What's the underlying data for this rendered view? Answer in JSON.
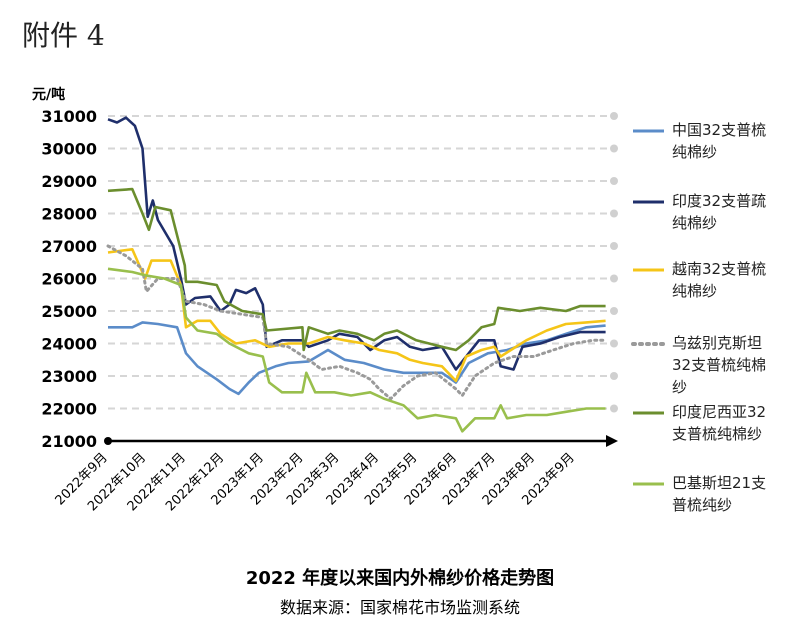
{
  "header": {
    "attachment": "附件 4"
  },
  "chart_data": {
    "type": "line",
    "title": "2022 年度以来国内外棉纱价格走势图",
    "source": "数据来源：国家棉花市场监测系统",
    "ylabel": "元/吨",
    "ylim": [
      21000,
      31000
    ],
    "yticks": [
      21000,
      22000,
      23000,
      24000,
      25000,
      26000,
      27000,
      28000,
      29000,
      30000,
      31000
    ],
    "grid": true,
    "legend_position": "right",
    "xlim": [
      "2022-09-01",
      "2023-09-30"
    ],
    "xticks": [
      {
        "date": "2022-09-01",
        "label": "2022年9月"
      },
      {
        "date": "2022-10-01",
        "label": "2022年10月"
      },
      {
        "date": "2022-11-01",
        "label": "2022年11月"
      },
      {
        "date": "2022-12-01",
        "label": "2022年12月"
      },
      {
        "date": "2023-01-01",
        "label": "2023年1月"
      },
      {
        "date": "2023-02-01",
        "label": "2023年2月"
      },
      {
        "date": "2023-03-01",
        "label": "2023年3月"
      },
      {
        "date": "2023-04-01",
        "label": "2023年4月"
      },
      {
        "date": "2023-05-01",
        "label": "2023年5月"
      },
      {
        "date": "2023-06-01",
        "label": "2023年6月"
      },
      {
        "date": "2023-07-01",
        "label": "2023年7月"
      },
      {
        "date": "2023-08-01",
        "label": "2023年8月"
      },
      {
        "date": "2023-09-01",
        "label": "2023年9月"
      }
    ],
    "series": [
      {
        "name": "中国32支普梳纯棉纱",
        "color": "#5b8cc9",
        "style": "solid",
        "points": [
          [
            "2022-09-01",
            24500
          ],
          [
            "2022-09-20",
            24500
          ],
          [
            "2022-09-28",
            24650
          ],
          [
            "2022-10-10",
            24600
          ],
          [
            "2022-10-25",
            24500
          ],
          [
            "2022-11-01",
            23700
          ],
          [
            "2022-11-10",
            23300
          ],
          [
            "2022-11-25",
            22900
          ],
          [
            "2022-12-05",
            22600
          ],
          [
            "2022-12-12",
            22450
          ],
          [
            "2022-12-20",
            22800
          ],
          [
            "2022-12-28",
            23100
          ],
          [
            "2023-01-10",
            23300
          ],
          [
            "2023-01-20",
            23400
          ],
          [
            "2023-02-05",
            23450
          ],
          [
            "2023-02-20",
            23800
          ],
          [
            "2023-03-05",
            23500
          ],
          [
            "2023-03-20",
            23400
          ],
          [
            "2023-04-05",
            23200
          ],
          [
            "2023-04-20",
            23100
          ],
          [
            "2023-05-05",
            23100
          ],
          [
            "2023-05-20",
            23100
          ],
          [
            "2023-05-31",
            22800
          ],
          [
            "2023-06-10",
            23400
          ],
          [
            "2023-06-25",
            23700
          ],
          [
            "2023-07-10",
            23800
          ],
          [
            "2023-07-25",
            24000
          ],
          [
            "2023-08-10",
            24100
          ],
          [
            "2023-08-25",
            24300
          ],
          [
            "2023-09-10",
            24500
          ],
          [
            "2023-09-25",
            24550
          ]
        ]
      },
      {
        "name": "印度32支普疏纯棉纱",
        "color": "#1f2f6b",
        "style": "solid",
        "points": [
          [
            "2022-09-01",
            30900
          ],
          [
            "2022-09-08",
            30800
          ],
          [
            "2022-09-15",
            30950
          ],
          [
            "2022-09-22",
            30700
          ],
          [
            "2022-09-28",
            30000
          ],
          [
            "2022-10-02",
            27900
          ],
          [
            "2022-10-06",
            28400
          ],
          [
            "2022-10-10",
            27800
          ],
          [
            "2022-10-22",
            27000
          ],
          [
            "2022-10-28",
            26000
          ],
          [
            "2022-11-01",
            25200
          ],
          [
            "2022-11-08",
            25400
          ],
          [
            "2022-11-20",
            25450
          ],
          [
            "2022-11-28",
            25000
          ],
          [
            "2022-12-05",
            25200
          ],
          [
            "2022-12-10",
            25650
          ],
          [
            "2022-12-18",
            25550
          ],
          [
            "2022-12-25",
            25700
          ],
          [
            "2022-12-31",
            25200
          ],
          [
            "2023-01-03",
            23900
          ],
          [
            "2023-01-15",
            24100
          ],
          [
            "2023-01-31",
            24100
          ],
          [
            "2023-02-05",
            23900
          ],
          [
            "2023-02-20",
            24100
          ],
          [
            "2023-03-01",
            24300
          ],
          [
            "2023-03-15",
            24200
          ],
          [
            "2023-03-25",
            23800
          ],
          [
            "2023-04-05",
            24100
          ],
          [
            "2023-04-15",
            24200
          ],
          [
            "2023-04-25",
            23900
          ],
          [
            "2023-05-05",
            23800
          ],
          [
            "2023-05-20",
            23900
          ],
          [
            "2023-05-31",
            23200
          ],
          [
            "2023-06-10",
            23700
          ],
          [
            "2023-06-18",
            24100
          ],
          [
            "2023-06-30",
            24100
          ],
          [
            "2023-07-05",
            23300
          ],
          [
            "2023-07-15",
            23200
          ],
          [
            "2023-07-22",
            23900
          ],
          [
            "2023-08-05",
            24000
          ],
          [
            "2023-08-20",
            24200
          ],
          [
            "2023-09-05",
            24350
          ],
          [
            "2023-09-25",
            24350
          ]
        ]
      },
      {
        "name": "越南32支普梳纯棉纱",
        "color": "#f5c518",
        "style": "solid",
        "points": [
          [
            "2022-09-01",
            26800
          ],
          [
            "2022-09-20",
            26900
          ],
          [
            "2022-09-30",
            26000
          ],
          [
            "2022-10-05",
            26550
          ],
          [
            "2022-10-20",
            26550
          ],
          [
            "2022-10-28",
            25800
          ],
          [
            "2022-11-01",
            24500
          ],
          [
            "2022-11-10",
            24700
          ],
          [
            "2022-11-20",
            24700
          ],
          [
            "2022-11-28",
            24300
          ],
          [
            "2022-12-10",
            24000
          ],
          [
            "2022-12-25",
            24100
          ],
          [
            "2023-01-05",
            23900
          ],
          [
            "2023-01-20",
            24000
          ],
          [
            "2023-02-05",
            24000
          ],
          [
            "2023-02-20",
            24200
          ],
          [
            "2023-03-05",
            24100
          ],
          [
            "2023-03-20",
            24000
          ],
          [
            "2023-04-01",
            23800
          ],
          [
            "2023-04-15",
            23700
          ],
          [
            "2023-04-25",
            23500
          ],
          [
            "2023-05-05",
            23400
          ],
          [
            "2023-05-20",
            23300
          ],
          [
            "2023-05-31",
            22850
          ],
          [
            "2023-06-08",
            23600
          ],
          [
            "2023-06-20",
            23800
          ],
          [
            "2023-06-30",
            23900
          ],
          [
            "2023-07-05",
            23600
          ],
          [
            "2023-07-15",
            23850
          ],
          [
            "2023-07-25",
            24100
          ],
          [
            "2023-08-10",
            24400
          ],
          [
            "2023-08-25",
            24600
          ],
          [
            "2023-09-10",
            24650
          ],
          [
            "2023-09-25",
            24700
          ]
        ]
      },
      {
        "name": "乌兹别克斯坦32支普梳纯棉纱",
        "color": "#9a9a9a",
        "style": "dotted",
        "points": [
          [
            "2022-09-01",
            27000
          ],
          [
            "2022-09-15",
            26700
          ],
          [
            "2022-09-28",
            26300
          ],
          [
            "2022-10-01",
            25600
          ],
          [
            "2022-10-10",
            26000
          ],
          [
            "2022-10-25",
            26000
          ],
          [
            "2022-11-01",
            25300
          ],
          [
            "2022-11-15",
            25200
          ],
          [
            "2022-11-28",
            25000
          ],
          [
            "2022-12-15",
            24900
          ],
          [
            "2022-12-31",
            24800
          ],
          [
            "2023-01-03",
            24000
          ],
          [
            "2023-01-20",
            23900
          ],
          [
            "2023-02-05",
            23500
          ],
          [
            "2023-02-15",
            23200
          ],
          [
            "2023-03-01",
            23300
          ],
          [
            "2023-03-15",
            23100
          ],
          [
            "2023-03-25",
            22900
          ],
          [
            "2023-04-01",
            22600
          ],
          [
            "2023-04-10",
            22300
          ],
          [
            "2023-04-20",
            22700
          ],
          [
            "2023-05-01",
            23000
          ],
          [
            "2023-05-15",
            23100
          ],
          [
            "2023-05-31",
            22600
          ],
          [
            "2023-06-05",
            22400
          ],
          [
            "2023-06-15",
            23000
          ],
          [
            "2023-06-30",
            23400
          ],
          [
            "2023-07-15",
            23600
          ],
          [
            "2023-07-31",
            23600
          ],
          [
            "2023-08-15",
            23800
          ],
          [
            "2023-08-31",
            24000
          ],
          [
            "2023-09-15",
            24100
          ],
          [
            "2023-09-25",
            24100
          ]
        ]
      },
      {
        "name": "印度尼西亚32支普梳纯棉纱",
        "color": "#6b8e2e",
        "style": "solid",
        "points": [
          [
            "2022-09-01",
            28700
          ],
          [
            "2022-09-20",
            28750
          ],
          [
            "2022-09-28",
            28000
          ],
          [
            "2022-10-03",
            27500
          ],
          [
            "2022-10-08",
            28200
          ],
          [
            "2022-10-20",
            28100
          ],
          [
            "2022-10-31",
            26400
          ],
          [
            "2022-11-01",
            25900
          ],
          [
            "2022-11-10",
            25900
          ],
          [
            "2022-11-25",
            25800
          ],
          [
            "2022-12-01",
            25300
          ],
          [
            "2022-12-15",
            25000
          ],
          [
            "2022-12-31",
            24900
          ],
          [
            "2023-01-03",
            24400
          ],
          [
            "2023-01-31",
            24500
          ],
          [
            "2023-02-01",
            23800
          ],
          [
            "2023-02-05",
            24500
          ],
          [
            "2023-02-20",
            24300
          ],
          [
            "2023-03-01",
            24400
          ],
          [
            "2023-03-15",
            24300
          ],
          [
            "2023-03-28",
            24100
          ],
          [
            "2023-04-05",
            24300
          ],
          [
            "2023-04-15",
            24400
          ],
          [
            "2023-04-30",
            24100
          ],
          [
            "2023-05-10",
            24000
          ],
          [
            "2023-05-20",
            23900
          ],
          [
            "2023-05-31",
            23800
          ],
          [
            "2023-06-10",
            24100
          ],
          [
            "2023-06-20",
            24500
          ],
          [
            "2023-06-30",
            24600
          ],
          [
            "2023-07-03",
            25100
          ],
          [
            "2023-07-20",
            25000
          ],
          [
            "2023-08-05",
            25100
          ],
          [
            "2023-08-25",
            25000
          ],
          [
            "2023-09-05",
            25150
          ],
          [
            "2023-09-25",
            25150
          ]
        ]
      },
      {
        "name": "巴基斯坦21支普梳纯纱",
        "color": "#99bf4d",
        "style": "solid",
        "points": [
          [
            "2022-09-01",
            26300
          ],
          [
            "2022-09-20",
            26200
          ],
          [
            "2022-09-30",
            26100
          ],
          [
            "2022-10-15",
            26000
          ],
          [
            "2022-10-28",
            25800
          ],
          [
            "2022-11-01",
            24800
          ],
          [
            "2022-11-10",
            24400
          ],
          [
            "2022-11-25",
            24300
          ],
          [
            "2022-12-05",
            24000
          ],
          [
            "2022-12-20",
            23700
          ],
          [
            "2022-12-31",
            23600
          ],
          [
            "2023-01-05",
            22800
          ],
          [
            "2023-01-15",
            22500
          ],
          [
            "2023-01-31",
            22500
          ],
          [
            "2023-02-03",
            23100
          ],
          [
            "2023-02-10",
            22500
          ],
          [
            "2023-02-25",
            22500
          ],
          [
            "2023-03-10",
            22400
          ],
          [
            "2023-03-25",
            22500
          ],
          [
            "2023-04-05",
            22300
          ],
          [
            "2023-04-20",
            22100
          ],
          [
            "2023-05-01",
            21700
          ],
          [
            "2023-05-15",
            21800
          ],
          [
            "2023-05-31",
            21700
          ],
          [
            "2023-06-05",
            21300
          ],
          [
            "2023-06-15",
            21700
          ],
          [
            "2023-06-30",
            21700
          ],
          [
            "2023-07-05",
            22100
          ],
          [
            "2023-07-10",
            21700
          ],
          [
            "2023-07-25",
            21800
          ],
          [
            "2023-08-10",
            21800
          ],
          [
            "2023-08-25",
            21900
          ],
          [
            "2023-09-10",
            22000
          ],
          [
            "2023-09-25",
            22000
          ]
        ]
      }
    ]
  }
}
